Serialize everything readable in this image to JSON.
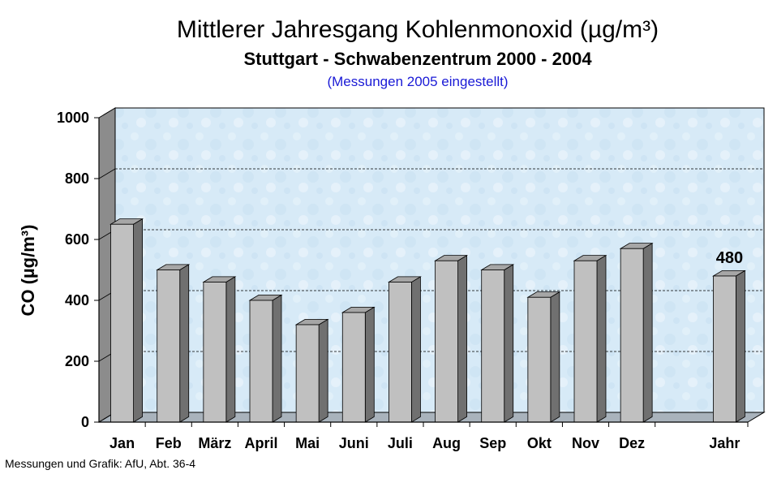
{
  "chart_data": {
    "type": "bar",
    "title": "Mittlerer Jahresgang Kohlenmonoxid (µg/m³)",
    "subtitle": "Stuttgart - Schwabenzentrum 2000 - 2004",
    "note": "(Messungen 2005 eingestellt)",
    "ylabel": "CO (µg/m³)",
    "ylim": [
      0,
      1000
    ],
    "yticks": [
      "0",
      "200",
      "400",
      "600",
      "800",
      "1000"
    ],
    "categories": [
      "Jan",
      "Feb",
      "März",
      "April",
      "Mai",
      "Juni",
      "Juli",
      "Aug",
      "Sep",
      "Okt",
      "Nov",
      "Dez",
      "Jahr"
    ],
    "values": [
      650,
      500,
      460,
      400,
      320,
      360,
      460,
      530,
      500,
      410,
      530,
      570,
      480
    ],
    "data_labels": [
      {
        "category": "Jahr",
        "text": "480"
      }
    ],
    "grid": "dashed horizontal",
    "colors": {
      "bar_front": "#c0c0c0",
      "bar_side": "#707070",
      "bar_top": "#a6a6a6",
      "plot_bg": "#d6e9f7",
      "floor": "#a9b3bc",
      "wall_side": "#8c8c8c"
    }
  },
  "footer": "Messungen und Grafik: AfU, Abt. 36-4"
}
